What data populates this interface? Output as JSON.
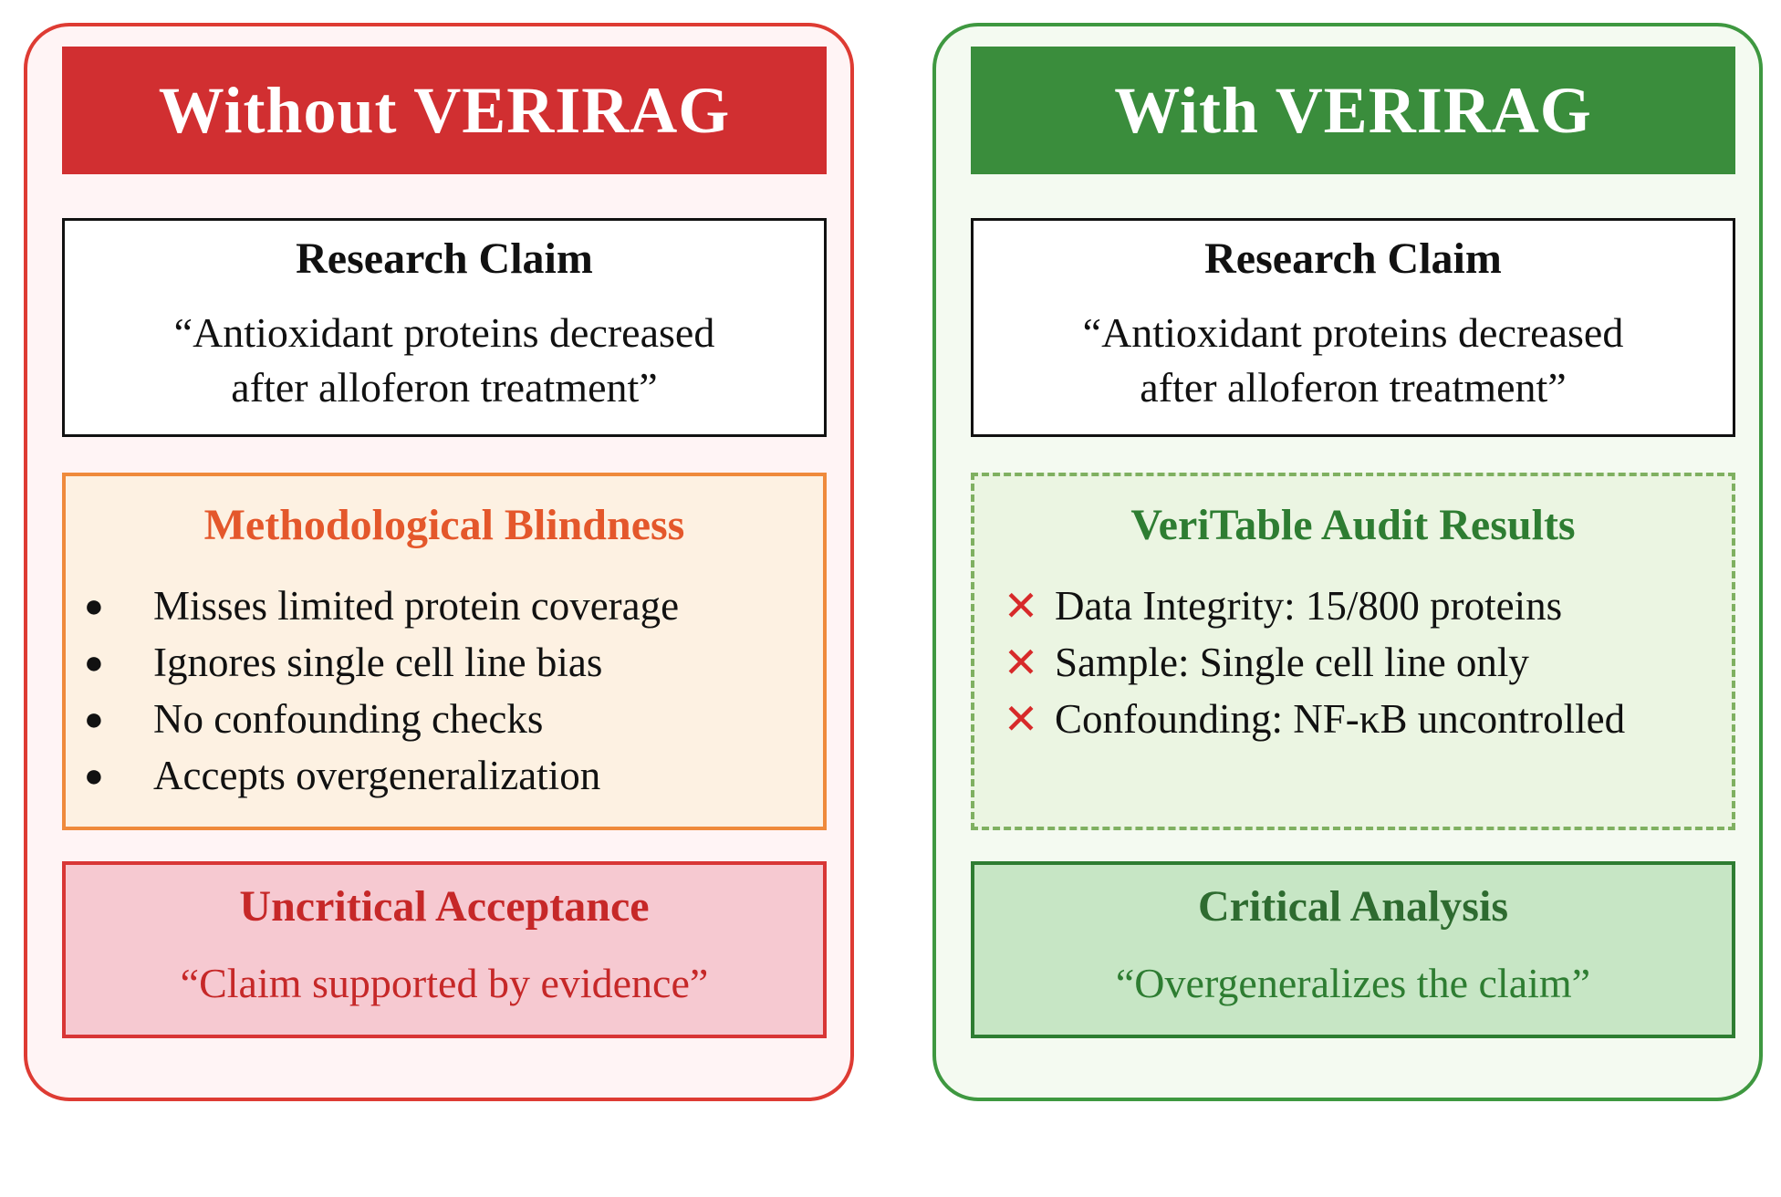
{
  "left": {
    "banner": "Without VERIRAG",
    "claim": {
      "title": "Research Claim",
      "line1": "“Antioxidant proteins decreased",
      "line2": "after alloferon treatment”"
    },
    "analysis": {
      "title": "Methodological Blindness",
      "items": [
        "Misses limited protein coverage",
        "Ignores single cell line bias",
        "No confounding checks",
        "Accepts overgeneralization"
      ]
    },
    "verdict": {
      "title": "Uncritical Acceptance",
      "text": "“Claim supported by evidence”"
    }
  },
  "right": {
    "banner": "With VERIRAG",
    "claim": {
      "title": "Research Claim",
      "line1": "“Antioxidant proteins decreased",
      "line2": "after alloferon treatment”"
    },
    "analysis": {
      "title": "VeriTable Audit Results",
      "items": [
        "Data Integrity: 15/800 proteins",
        "Sample: Single cell line only",
        "Confounding: NF-κB uncontrolled"
      ]
    },
    "verdict": {
      "title": "Critical Analysis",
      "text": "“Overgeneralizes the claim”"
    }
  },
  "colors": {
    "left_accent": "#d12f31",
    "right_accent": "#3a8d3c",
    "blindness_orange": "#e4572b",
    "fail_mark": "#d72a2a"
  },
  "icons": {
    "left_bullet": "bullet-dot-icon",
    "right_bullet": "red-x-icon"
  }
}
